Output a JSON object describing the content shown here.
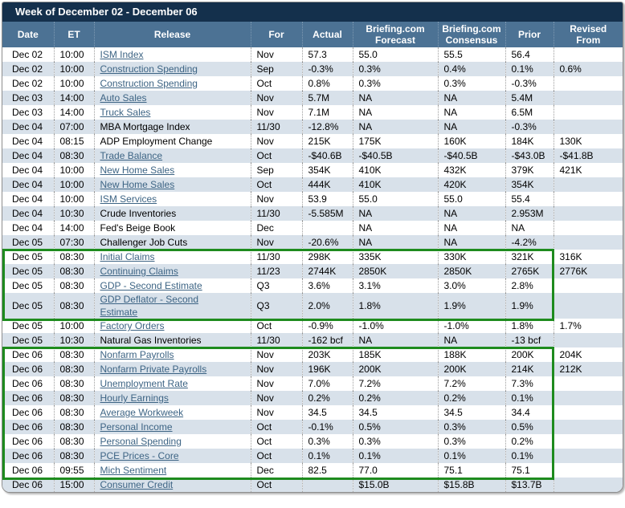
{
  "title": "Week of December 02 - December 06",
  "columns": [
    "Date",
    "ET",
    "Release",
    "For",
    "Actual",
    "Briefing.com Forecast",
    "Briefing.com Consensus",
    "Prior",
    "Revised From"
  ],
  "rows": [
    {
      "date": "Dec 02",
      "et": "10:00",
      "release": "ISM Index",
      "link": true,
      "for": "Nov",
      "actual": "57.3",
      "forecast": "55.0",
      "consensus": "55.5",
      "prior": "56.4",
      "revised": ""
    },
    {
      "date": "Dec 02",
      "et": "10:00",
      "release": "Construction Spending",
      "link": true,
      "for": "Sep",
      "actual": "-0.3%",
      "forecast": "0.3%",
      "consensus": "0.4%",
      "prior": "0.1%",
      "revised": "0.6%"
    },
    {
      "date": "Dec 02",
      "et": "10:00",
      "release": "Construction Spending",
      "link": true,
      "for": "Oct",
      "actual": "0.8%",
      "forecast": "0.3%",
      "consensus": "0.3%",
      "prior": "-0.3%",
      "revised": ""
    },
    {
      "date": "Dec 03",
      "et": "14:00",
      "release": "Auto Sales",
      "link": true,
      "for": "Nov",
      "actual": "5.7M",
      "forecast": "NA",
      "consensus": "NA",
      "prior": "5.4M",
      "revised": ""
    },
    {
      "date": "Dec 03",
      "et": "14:00",
      "release": "Truck Sales",
      "link": true,
      "for": "Nov",
      "actual": "7.1M",
      "forecast": "NA",
      "consensus": "NA",
      "prior": "6.5M",
      "revised": ""
    },
    {
      "date": "Dec 04",
      "et": "07:00",
      "release": "MBA Mortgage Index",
      "link": false,
      "for": "11/30",
      "actual": "-12.8%",
      "forecast": "NA",
      "consensus": "NA",
      "prior": "-0.3%",
      "revised": ""
    },
    {
      "date": "Dec 04",
      "et": "08:15",
      "release": "ADP Employment Change",
      "link": false,
      "for": "Nov",
      "actual": "215K",
      "forecast": "175K",
      "consensus": "160K",
      "prior": "184K",
      "revised": "130K"
    },
    {
      "date": "Dec 04",
      "et": "08:30",
      "release": "Trade Balance",
      "link": true,
      "for": "Oct",
      "actual": "-$40.6B",
      "forecast": "-$40.5B",
      "consensus": "-$40.5B",
      "prior": "-$43.0B",
      "revised": "-$41.8B"
    },
    {
      "date": "Dec 04",
      "et": "10:00",
      "release": "New Home Sales",
      "link": true,
      "for": "Sep",
      "actual": "354K",
      "forecast": "410K",
      "consensus": "432K",
      "prior": "379K",
      "revised": "421K"
    },
    {
      "date": "Dec 04",
      "et": "10:00",
      "release": "New Home Sales",
      "link": true,
      "for": "Oct",
      "actual": "444K",
      "forecast": "410K",
      "consensus": "420K",
      "prior": "354K",
      "revised": ""
    },
    {
      "date": "Dec 04",
      "et": "10:00",
      "release": "ISM Services",
      "link": true,
      "for": "Nov",
      "actual": "53.9",
      "forecast": "55.0",
      "consensus": "55.0",
      "prior": "55.4",
      "revised": ""
    },
    {
      "date": "Dec 04",
      "et": "10:30",
      "release": "Crude Inventories",
      "link": false,
      "for": "11/30",
      "actual": "-5.585M",
      "forecast": "NA",
      "consensus": "NA",
      "prior": "2.953M",
      "revised": ""
    },
    {
      "date": "Dec 04",
      "et": "14:00",
      "release": "Fed's Beige Book",
      "link": false,
      "for": "Dec",
      "actual": "",
      "forecast": "NA",
      "consensus": "NA",
      "prior": "NA",
      "revised": ""
    },
    {
      "date": "Dec 05",
      "et": "07:30",
      "release": "Challenger Job Cuts",
      "link": false,
      "for": "Nov",
      "actual": "-20.6%",
      "forecast": "NA",
      "consensus": "NA",
      "prior": "-4.2%",
      "revised": ""
    },
    {
      "date": "Dec 05",
      "et": "08:30",
      "release": "Initial Claims",
      "link": true,
      "for": "11/30",
      "actual": "298K",
      "forecast": "335K",
      "consensus": "330K",
      "prior": "321K",
      "revised": "316K"
    },
    {
      "date": "Dec 05",
      "et": "08:30",
      "release": "Continuing Claims",
      "link": true,
      "for": "11/23",
      "actual": "2744K",
      "forecast": "2850K",
      "consensus": "2850K",
      "prior": "2765K",
      "revised": "2776K"
    },
    {
      "date": "Dec 05",
      "et": "08:30",
      "release": "GDP - Second Estimate",
      "link": true,
      "for": "Q3",
      "actual": "3.6%",
      "forecast": "3.1%",
      "consensus": "3.0%",
      "prior": "2.8%",
      "revised": ""
    },
    {
      "date": "Dec 05",
      "et": "08:30",
      "release": "GDP Deflator - Second Estimate",
      "link": true,
      "for": "Q3",
      "actual": "2.0%",
      "forecast": "1.8%",
      "consensus": "1.9%",
      "prior": "1.9%",
      "revised": ""
    },
    {
      "date": "Dec 05",
      "et": "10:00",
      "release": "Factory Orders",
      "link": true,
      "for": "Oct",
      "actual": "-0.9%",
      "forecast": "-1.0%",
      "consensus": "-1.0%",
      "prior": "1.8%",
      "revised": "1.7%"
    },
    {
      "date": "Dec 05",
      "et": "10:30",
      "release": "Natural Gas Inventories",
      "link": false,
      "for": "11/30",
      "actual": "-162 bcf",
      "forecast": "NA",
      "consensus": "NA",
      "prior": "-13 bcf",
      "revised": ""
    },
    {
      "date": "Dec 06",
      "et": "08:30",
      "release": "Nonfarm Payrolls",
      "link": true,
      "for": "Nov",
      "actual": "203K",
      "forecast": "185K",
      "consensus": "188K",
      "prior": "200K",
      "revised": "204K"
    },
    {
      "date": "Dec 06",
      "et": "08:30",
      "release": "Nonfarm Private Payrolls",
      "link": true,
      "for": "Nov",
      "actual": "196K",
      "forecast": "200K",
      "consensus": "200K",
      "prior": "214K",
      "revised": "212K"
    },
    {
      "date": "Dec 06",
      "et": "08:30",
      "release": "Unemployment Rate",
      "link": true,
      "for": "Nov",
      "actual": "7.0%",
      "forecast": "7.2%",
      "consensus": "7.2%",
      "prior": "7.3%",
      "revised": ""
    },
    {
      "date": "Dec 06",
      "et": "08:30",
      "release": "Hourly Earnings",
      "link": true,
      "for": "Nov",
      "actual": "0.2%",
      "forecast": "0.2%",
      "consensus": "0.2%",
      "prior": "0.1%",
      "revised": ""
    },
    {
      "date": "Dec 06",
      "et": "08:30",
      "release": "Average Workweek",
      "link": true,
      "for": "Nov",
      "actual": "34.5",
      "forecast": "34.5",
      "consensus": "34.5",
      "prior": "34.4",
      "revised": ""
    },
    {
      "date": "Dec 06",
      "et": "08:30",
      "release": "Personal Income",
      "link": true,
      "for": "Oct",
      "actual": "-0.1%",
      "forecast": "0.5%",
      "consensus": "0.3%",
      "prior": "0.5%",
      "revised": ""
    },
    {
      "date": "Dec 06",
      "et": "08:30",
      "release": "Personal Spending",
      "link": true,
      "for": "Oct",
      "actual": "0.3%",
      "forecast": "0.3%",
      "consensus": "0.3%",
      "prior": "0.2%",
      "revised": ""
    },
    {
      "date": "Dec 06",
      "et": "08:30",
      "release": "PCE Prices - Core",
      "link": true,
      "for": "Oct",
      "actual": "0.1%",
      "forecast": "0.1%",
      "consensus": "0.1%",
      "prior": "0.1%",
      "revised": ""
    },
    {
      "date": "Dec 06",
      "et": "09:55",
      "release": "Mich Sentiment",
      "link": true,
      "for": "Dec",
      "actual": "82.5",
      "forecast": "77.0",
      "consensus": "75.1",
      "prior": "75.1",
      "revised": ""
    },
    {
      "date": "Dec 06",
      "et": "15:00",
      "release": "Consumer Credit",
      "link": true,
      "for": "Oct",
      "actual": "",
      "forecast": "$15.0B",
      "consensus": "$15.8B",
      "prior": "$13.7B",
      "revised": ""
    }
  ],
  "highlights": [
    {
      "first_row": 15,
      "last_row": 18
    },
    {
      "first_row": 21,
      "last_row": 29
    }
  ],
  "colors": {
    "title_bar_bg": "#14304C",
    "header_bg": "#4C7294",
    "header_text": "#FFFFFF",
    "row_bg": "#FFFFFF",
    "row_alt_bg": "#D8E1EA",
    "link_color": "#3D6484",
    "highlight_border": "#1E8B1E",
    "outer_border": "#8E8E8E"
  }
}
